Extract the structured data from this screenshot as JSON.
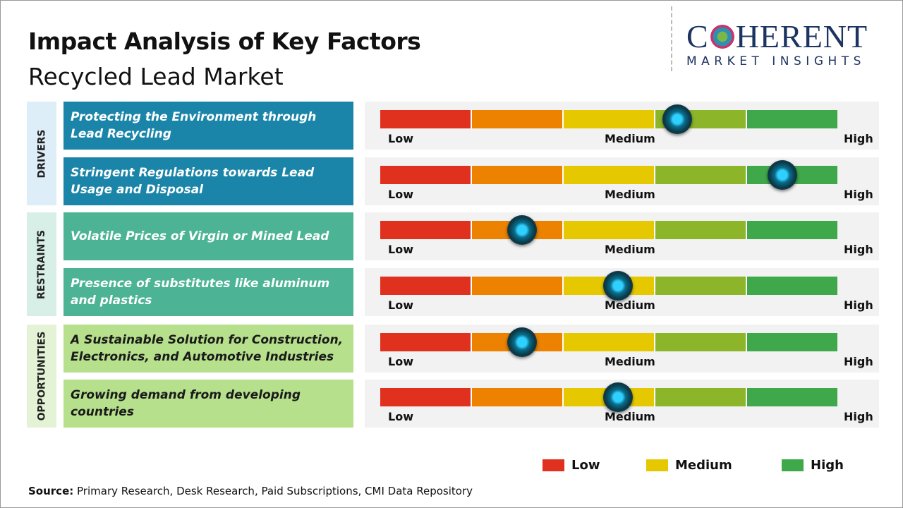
{
  "header": {
    "title": "Impact Analysis of Key Factors",
    "subtitle": "Recycled Lead Market"
  },
  "logo": {
    "line1": "COHERENT",
    "line2": "MARKET INSIGHTS"
  },
  "scale_labels": {
    "low": "Low",
    "medium": "Medium",
    "high": "High"
  },
  "colors": {
    "segments": [
      "#e0301e",
      "#ec8200",
      "#e6c800",
      "#8db52a",
      "#3ea84a"
    ]
  },
  "categories": [
    {
      "name": "DRIVERS",
      "light": "#ddeef8",
      "dark": "#1a85a8",
      "text": "#ffffff"
    },
    {
      "name": "RESTRAINTS",
      "light": "#d8efe7",
      "dark": "#4cb494",
      "text": "#ffffff"
    },
    {
      "name": "OPPORTUNITIES",
      "light": "#e4f3d6",
      "dark": "#b6e08c",
      "text": "#1a1a1a"
    }
  ],
  "chart_data": {
    "type": "gauge-bars",
    "title": "Impact Analysis of Key Factors",
    "scale": [
      "Low",
      "Medium",
      "High"
    ],
    "range": [
      0,
      1
    ],
    "factors": [
      {
        "category": "DRIVERS",
        "label": "Protecting the Environment through Lead Recycling",
        "impact": 0.65
      },
      {
        "category": "DRIVERS",
        "label": "Stringent Regulations towards Lead Usage and Disposal",
        "impact": 0.88
      },
      {
        "category": "RESTRAINTS",
        "label": "Volatile Prices of Virgin or Mined Lead",
        "impact": 0.31
      },
      {
        "category": "RESTRAINTS",
        "label": "Presence of substitutes like aluminum and plastics",
        "impact": 0.52
      },
      {
        "category": "OPPORTUNITIES",
        "label": "A Sustainable Solution for Construction, Electronics, and Automotive Industries",
        "impact": 0.31
      },
      {
        "category": "OPPORTUNITIES",
        "label": "Growing demand from developing countries",
        "impact": 0.52
      }
    ],
    "legend": [
      {
        "label": "Low",
        "color": "#e0301e"
      },
      {
        "label": "Medium",
        "color": "#e6c800"
      },
      {
        "label": "High",
        "color": "#3ea84a"
      }
    ]
  },
  "footer": {
    "source_label": "Source:",
    "source_text": " Primary Research, Desk Research, Paid Subscriptions, CMI Data Repository"
  }
}
